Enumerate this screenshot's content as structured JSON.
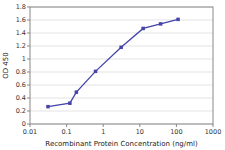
{
  "chart_data": {
    "type": "line",
    "x": [
      0.031,
      0.123,
      0.185,
      0.617,
      3.09,
      12.35,
      37.04,
      111.1
    ],
    "values": [
      0.267,
      0.32,
      0.49,
      0.81,
      1.18,
      1.47,
      1.54,
      1.61
    ],
    "color": "#4444aa",
    "marker": "square",
    "xlabel": "Recombinant Protein Concentration (ng/ml)",
    "ylabel": "OD 450",
    "log": "x",
    "xlim": [
      0.01,
      1000
    ],
    "ylim": [
      0,
      1.8
    ],
    "xticks": [
      0.01,
      0.1,
      1,
      10,
      100,
      1000
    ],
    "yticks": [
      0,
      0.2,
      0.4,
      0.6,
      0.8,
      1,
      1.2,
      1.4,
      1.6,
      1.8
    ],
    "grid": true
  }
}
